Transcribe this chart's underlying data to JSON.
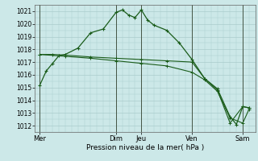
{
  "background_color": "#cce8e8",
  "grid_color": "#aacccc",
  "line_color": "#1a5c1a",
  "ylim": [
    1011.5,
    1021.5
  ],
  "yticks": [
    1012,
    1013,
    1014,
    1015,
    1016,
    1017,
    1018,
    1019,
    1020,
    1021
  ],
  "xlabel": "Pression niveau de la mer( hPa )",
  "day_labels": [
    "Mer",
    "Dim",
    "Jeu",
    "Ven",
    "Sam"
  ],
  "day_positions": [
    0,
    3,
    4,
    6,
    8
  ],
  "xlim": [
    -0.2,
    8.5
  ],
  "series1_x": [
    0,
    0.25,
    0.5,
    0.75,
    1.0,
    1.5,
    2.0,
    2.5,
    3.0,
    3.25,
    3.5,
    3.75,
    4.0,
    4.25,
    4.5,
    5.0,
    5.5,
    6.0,
    6.5,
    7.0,
    7.5,
    7.75,
    8.0,
    8.25
  ],
  "series1_y": [
    1015.2,
    1016.3,
    1016.9,
    1017.5,
    1017.6,
    1018.1,
    1019.3,
    1019.6,
    1020.9,
    1021.1,
    1020.7,
    1020.5,
    1021.1,
    1020.3,
    1019.9,
    1019.5,
    1018.5,
    1017.2,
    1015.7,
    1014.9,
    1012.7,
    1012.1,
    1013.5,
    1013.4
  ],
  "series2_x": [
    0,
    0.5,
    1.0,
    2.0,
    3.0,
    4.0,
    5.0,
    6.0,
    6.5,
    7.0,
    7.5,
    8.0,
    8.25
  ],
  "series2_y": [
    1017.6,
    1017.6,
    1017.55,
    1017.4,
    1017.3,
    1017.2,
    1017.1,
    1017.0,
    1015.7,
    1014.8,
    1012.2,
    1013.5,
    1013.4
  ],
  "series3_x": [
    0,
    1.0,
    2.0,
    3.0,
    4.0,
    5.0,
    6.0,
    6.5,
    7.0,
    7.5,
    8.0,
    8.25
  ],
  "series3_y": [
    1017.6,
    1017.45,
    1017.3,
    1017.1,
    1016.9,
    1016.7,
    1016.2,
    1015.6,
    1014.7,
    1012.6,
    1012.2,
    1013.3
  ],
  "vline_positions": [
    0,
    3,
    4,
    6,
    8
  ],
  "vline_color": "#445544"
}
